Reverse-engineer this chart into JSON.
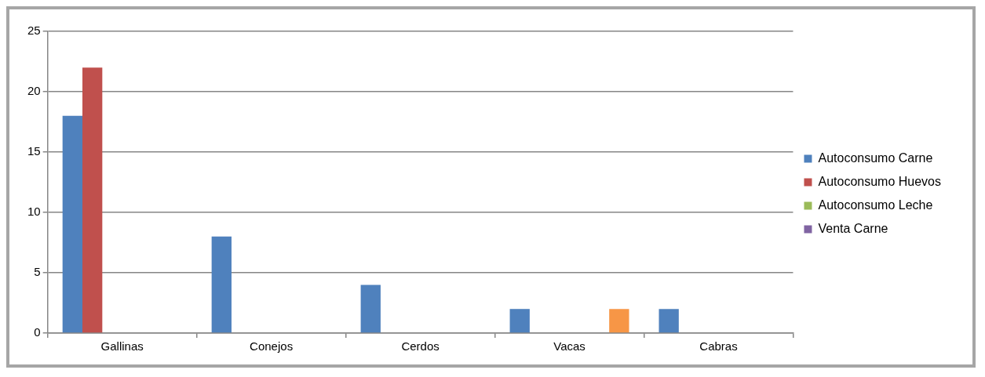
{
  "chart_data": {
    "type": "bar",
    "categories": [
      "Gallinas",
      "Conejos",
      "Cerdos",
      "Vacas",
      "Cabras"
    ],
    "series": [
      {
        "name": "Autoconsumo Carne",
        "color": "#4f81bd",
        "values": [
          18,
          8,
          4,
          2,
          2
        ]
      },
      {
        "name": "Autoconsumo Huevos",
        "color": "#c0504d",
        "values": [
          22,
          0,
          0,
          0,
          0
        ]
      },
      {
        "name": "Autoconsumo Leche",
        "color": "#9bbb59",
        "values": [
          0,
          0,
          0,
          0,
          0
        ]
      },
      {
        "name": "Venta Carne",
        "color": "#8064a2",
        "values": [
          0,
          0,
          0,
          0,
          0
        ]
      },
      {
        "color": "#4bacc6",
        "values": [
          0,
          0,
          0,
          0,
          0
        ]
      },
      {
        "color": "#f79646",
        "values": [
          0,
          0,
          0,
          2,
          0
        ]
      }
    ],
    "ylim": [
      0,
      25
    ],
    "yticks": [
      0,
      5,
      10,
      15,
      20,
      25
    ],
    "grid": "y",
    "legend": "right"
  }
}
